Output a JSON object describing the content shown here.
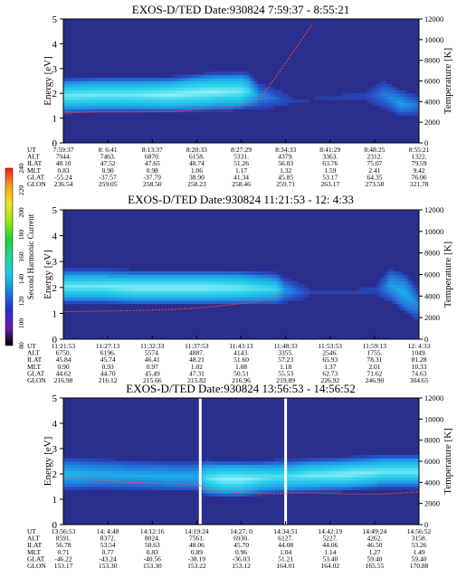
{
  "colors": {
    "background": "#2a2f8e",
    "line": "#ff4a2a",
    "colorbar": [
      "#000000",
      "#6a1fa8",
      "#2b2bd6",
      "#1a7fe0",
      "#18c8e8",
      "#22d6a0",
      "#1fd23a",
      "#9be81a",
      "#f2e51c",
      "#f7a21a",
      "#ff1a10"
    ]
  },
  "colorbar": {
    "label": "Second Harmonic Current",
    "ticks": [
      "80",
      "100",
      "120",
      "140",
      "160",
      "180",
      "200",
      "220",
      "240"
    ]
  },
  "chart_data": [
    {
      "type": "heatmap",
      "title": "EXOS-D/TED   Date:930824   7:59:37 - 8:55:21",
      "ylabel": "Energy [eV]",
      "y2label": "Temperature [K]",
      "ylim": [
        0,
        5
      ],
      "yticks": [
        "0",
        "1",
        "2",
        "3",
        "4",
        "5"
      ],
      "y2lim": [
        0,
        12000
      ],
      "y2ticks": [
        "0",
        "2000",
        "4000",
        "6000",
        "8000",
        "10000",
        "12000"
      ],
      "band": {
        "x": [
          0,
          0.1,
          0.2,
          0.3,
          0.4,
          0.5,
          0.52,
          0.55,
          0.65,
          0.75,
          0.85,
          0.9,
          0.95,
          1.0
        ],
        "center": [
          1.9,
          1.95,
          1.95,
          1.95,
          2.05,
          2.1,
          2.1,
          1.9,
          1.7,
          1.8,
          1.9,
          1.95,
          1.6,
          1.5
        ],
        "half_width": [
          0.45,
          0.45,
          0.45,
          0.45,
          0.5,
          0.5,
          0.45,
          0.3,
          0.1,
          0.1,
          0.15,
          0.35,
          0.3,
          0.2
        ],
        "intensity": [
          0.9,
          0.9,
          0.9,
          0.95,
          0.95,
          0.9,
          0.8,
          0.5,
          0.15,
          0.15,
          0.2,
          0.4,
          0.55,
          0.4
        ]
      },
      "temperature_line": {
        "x": [
          0,
          0.1,
          0.2,
          0.3,
          0.4,
          0.5,
          0.55,
          0.6,
          0.65,
          0.7
        ],
        "y": [
          2900,
          3000,
          3000,
          3050,
          3300,
          3600,
          4200,
          6500,
          9000,
          11500
        ]
      },
      "ephemeris": {
        "labels": [
          "UT",
          "ALT",
          "ILAT",
          "MLT",
          "GLAT",
          "GLON"
        ],
        "columns": [
          [
            "7:59:37",
            "7944.",
            "48.10",
            "0.83",
            "-55.24",
            "236.54"
          ],
          [
            "8: 6:41",
            "7463.",
            "47.52",
            "0.90",
            "-37.57",
            "259.05"
          ],
          [
            "8:13:37",
            "6870.",
            "47.65",
            "0.98",
            "-37.79",
            "258.50"
          ],
          [
            "8:20:33",
            "6158.",
            "48.74",
            "1.06",
            "38.90",
            "258.23"
          ],
          [
            "8:27:29",
            "5331.",
            "51.26",
            "1.17",
            "41.34",
            "258.46"
          ],
          [
            "8:34:33",
            "4379.",
            "56.03",
            "1.32",
            "45.85",
            "259.71"
          ],
          [
            "8:41:29",
            "3363.",
            "63.76",
            "1.59",
            "53.17",
            "263.17"
          ],
          [
            "8:48:25",
            "2312.",
            "75.07",
            "2.41",
            "64.35",
            "273.58"
          ],
          [
            "8:55:21",
            "1322.",
            "79.59",
            "9.42",
            "76.06",
            "321.78"
          ]
        ]
      }
    },
    {
      "type": "heatmap",
      "title": "EXOS-D/TED   Date:930824   11:21:53 - 12: 4:33",
      "ylabel": "Energy [eV]",
      "y2label": "Temperature [K]",
      "ylim": [
        0,
        5
      ],
      "yticks": [
        "0",
        "1",
        "2",
        "3",
        "4",
        "5"
      ],
      "y2lim": [
        0,
        12000
      ],
      "y2ticks": [
        "0",
        "2000",
        "4000",
        "6000",
        "8000",
        "10000",
        "12000"
      ],
      "band": {
        "x": [
          0,
          0.1,
          0.2,
          0.3,
          0.4,
          0.5,
          0.6,
          0.62,
          0.7,
          0.8,
          0.88,
          0.92,
          0.96,
          1.0
        ],
        "center": [
          2.05,
          2.05,
          2.0,
          2.0,
          2.0,
          2.0,
          1.95,
          1.9,
          1.8,
          1.8,
          1.9,
          2.1,
          1.8,
          1.3
        ],
        "half_width": [
          0.4,
          0.4,
          0.4,
          0.4,
          0.4,
          0.4,
          0.35,
          0.25,
          0.1,
          0.1,
          0.15,
          0.4,
          0.5,
          0.4
        ],
        "intensity": [
          0.9,
          0.9,
          0.95,
          0.95,
          0.95,
          0.9,
          0.8,
          0.55,
          0.15,
          0.15,
          0.2,
          0.55,
          0.6,
          0.45
        ]
      },
      "temperature_line": {
        "x": [
          0,
          0.1,
          0.2,
          0.3,
          0.4,
          0.5,
          0.58,
          0.62
        ],
        "y": [
          2550,
          2600,
          2650,
          2750,
          2950,
          3300,
          3700,
          4400
        ]
      },
      "ephemeris": {
        "labels": [
          "UT",
          "ALT",
          "ILAT",
          "MLT",
          "GLAT",
          "GLON"
        ],
        "columns": [
          [
            "11:21:53",
            "6750.",
            "45.84",
            "0.90",
            "44.62",
            "216.98"
          ],
          [
            "11:27:13",
            "6196.",
            "45.74",
            "0.93",
            "44.70",
            "216.12"
          ],
          [
            "11:32:33",
            "5574.",
            "46.41",
            "0.97",
            "45.49",
            "215.66"
          ],
          [
            "11:37:53",
            "4887.",
            "48.21",
            "1.02",
            "47.31",
            "215.82"
          ],
          [
            "11:43:13",
            "4143.",
            "51.60",
            "1.08",
            "50.51",
            "216.96"
          ],
          [
            "11:48:33",
            "3355.",
            "57.23",
            "1.18",
            "55.53",
            "219.89"
          ],
          [
            "11:53:53",
            "2546.",
            "65.93",
            "1.37",
            "62.73",
            "226.92"
          ],
          [
            "11:59:13",
            "1755.",
            "78.31",
            "2.01",
            "71.62",
            "246.90"
          ],
          [
            "12: 4:33",
            "1049.",
            "81.28",
            "10.33",
            "74.63",
            "304.65"
          ]
        ]
      }
    },
    {
      "type": "heatmap",
      "title": "EXOS-D/TED   Date:930824   13:56:53 - 14:56:52",
      "ylabel": "Energy [eV]",
      "y2label": "Temperature [K]",
      "ylim": [
        0,
        5
      ],
      "yticks": [
        "0",
        "1",
        "2",
        "3",
        "4",
        "5"
      ],
      "y2lim": [
        0,
        12000
      ],
      "y2ticks": [
        "0",
        "2000",
        "4000",
        "6000",
        "8000",
        "10000",
        "12000"
      ],
      "gaps": [
        0.385,
        0.625
      ],
      "band": {
        "x": [
          0,
          0.1,
          0.2,
          0.3,
          0.38,
          0.4,
          0.45,
          0.5,
          0.55,
          0.6,
          0.63,
          0.7,
          0.8,
          0.9,
          1.0
        ],
        "center": [
          2.0,
          2.0,
          1.95,
          1.9,
          1.9,
          1.85,
          1.8,
          1.8,
          1.85,
          1.9,
          1.9,
          1.95,
          2.0,
          2.1,
          2.1
        ],
        "half_width": [
          0.4,
          0.35,
          0.35,
          0.35,
          0.35,
          0.45,
          0.45,
          0.45,
          0.4,
          0.4,
          0.4,
          0.4,
          0.4,
          0.4,
          0.4
        ],
        "intensity": [
          0.65,
          0.6,
          0.6,
          0.6,
          0.6,
          0.85,
          0.95,
          0.95,
          0.9,
          0.85,
          0.85,
          0.9,
          0.95,
          0.9,
          0.9
        ]
      },
      "temperature_line": {
        "x": [
          0,
          0.1,
          0.2,
          0.3,
          0.38,
          0.4,
          0.5,
          0.6,
          0.65,
          0.7,
          0.8,
          0.9,
          1.0
        ],
        "y": [
          4400,
          4200,
          4000,
          3900,
          3800,
          3300,
          3000,
          2900,
          3000,
          3000,
          2900,
          2900,
          3100
        ]
      },
      "ephemeris": {
        "labels": [
          "UT",
          "ALT",
          "ILAT",
          "MLT",
          "GLAT",
          "GLON"
        ],
        "columns": [
          [
            "13:56:53",
            "8591.",
            "56.78",
            "0.71",
            "-46.22",
            "153.17"
          ],
          [
            "14: 4:48",
            "8372.",
            "53.54",
            "0.77",
            "-43.24",
            "153.30"
          ],
          [
            "14:12:16",
            "8024.",
            "50.63",
            "0.83",
            "-40.56",
            "153.30"
          ],
          [
            "14:19:24",
            "7561.",
            "48.06",
            "0.89",
            "-38.19",
            "153.22"
          ],
          [
            "14:27: 0",
            "6930.",
            "45.70",
            "0.96",
            "-36.03",
            "153.12"
          ],
          [
            "14:34:51",
            "6127.",
            "44.08",
            "1.04",
            "51.21",
            "164.01"
          ],
          [
            "14:42:19",
            "5227.",
            "44.06",
            "1.14",
            "53.40",
            "164.02"
          ],
          [
            "14:49:24",
            "4262.",
            "46.50",
            "1.27",
            "59.40",
            "165.55"
          ],
          [
            "14:56:52",
            "3158.",
            "53.26",
            "1.49",
            "59.40",
            "170.88"
          ]
        ]
      }
    }
  ]
}
